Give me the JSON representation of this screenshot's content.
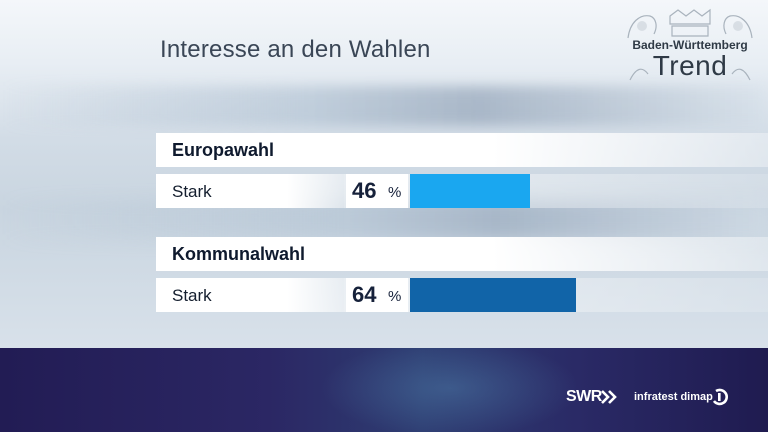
{
  "header": {
    "title": "Interesse an den Wahlen"
  },
  "logo": {
    "line1": "Baden-Württemberg",
    "line2": "Trend",
    "icon": "coat-of-arms-icon"
  },
  "footer": {
    "broadcaster": "SWR",
    "broadcaster_icon": "swr-arrows-icon",
    "pollster": "infratest dimap",
    "pollster_icon": "infratest-dimap-icon"
  },
  "chart_data": {
    "type": "bar",
    "title": "Interesse an den Wahlen",
    "unit": "%",
    "xlim": [
      0,
      100
    ],
    "groups": [
      {
        "name": "Europawahl",
        "categories": [
          "Stark"
        ],
        "values": [
          46
        ],
        "color": "#1aa7f0"
      },
      {
        "name": "Kommunalwahl",
        "categories": [
          "Stark"
        ],
        "values": [
          64
        ],
        "color": "#1164a8"
      }
    ]
  }
}
